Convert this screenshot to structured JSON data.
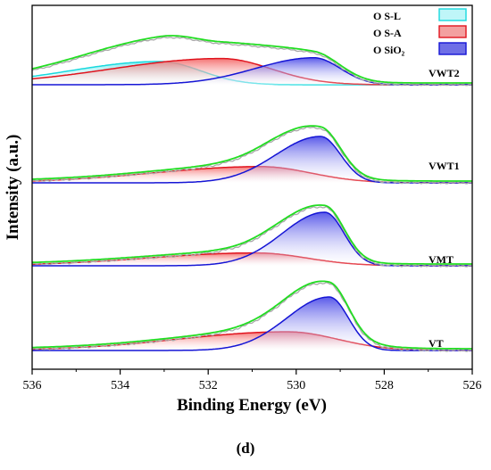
{
  "chart_data": {
    "type": "line",
    "xlabel": "Binding Energy (eV)",
    "ylabel": "Intensity (a.u.)",
    "xlim": [
      536,
      526
    ],
    "x_reversed": true,
    "xticks": [
      536,
      534,
      532,
      530,
      528,
      526
    ],
    "grid": false,
    "legend_position": "top-right",
    "legend": [
      {
        "label": "O S-L",
        "color": "#19d9de"
      },
      {
        "label": "O S-A",
        "color": "#e0141e"
      },
      {
        "label": "O SiO₂",
        "color": "#1515d5"
      }
    ],
    "envelope_color": "#22dd22",
    "raw_color": "#a8a8a8",
    "panels": [
      {
        "sample": "VWT2",
        "peaks": [
          {
            "component": "O S-L",
            "center": 533.1,
            "height": 0.62
          },
          {
            "component": "O S-A",
            "center": 531.7,
            "height": 0.7
          },
          {
            "component": "O SiO₂",
            "center": 529.6,
            "height": 0.72
          }
        ]
      },
      {
        "sample": "VWT1",
        "peaks": [
          {
            "component": "O S-A",
            "center": 530.8,
            "height": 0.35
          },
          {
            "component": "O SiO₂",
            "center": 529.45,
            "height": 1.0
          }
        ]
      },
      {
        "sample": "VMT",
        "peaks": [
          {
            "component": "O S-A",
            "center": 530.9,
            "height": 0.24
          },
          {
            "component": "O SiO₂",
            "center": 529.35,
            "height": 1.0
          }
        ]
      },
      {
        "sample": "VT",
        "peaks": [
          {
            "component": "O S-A",
            "center": 530.2,
            "height": 0.35
          },
          {
            "component": "O SiO₂",
            "center": 529.25,
            "height": 1.0
          }
        ]
      }
    ]
  },
  "caption": "(d)"
}
